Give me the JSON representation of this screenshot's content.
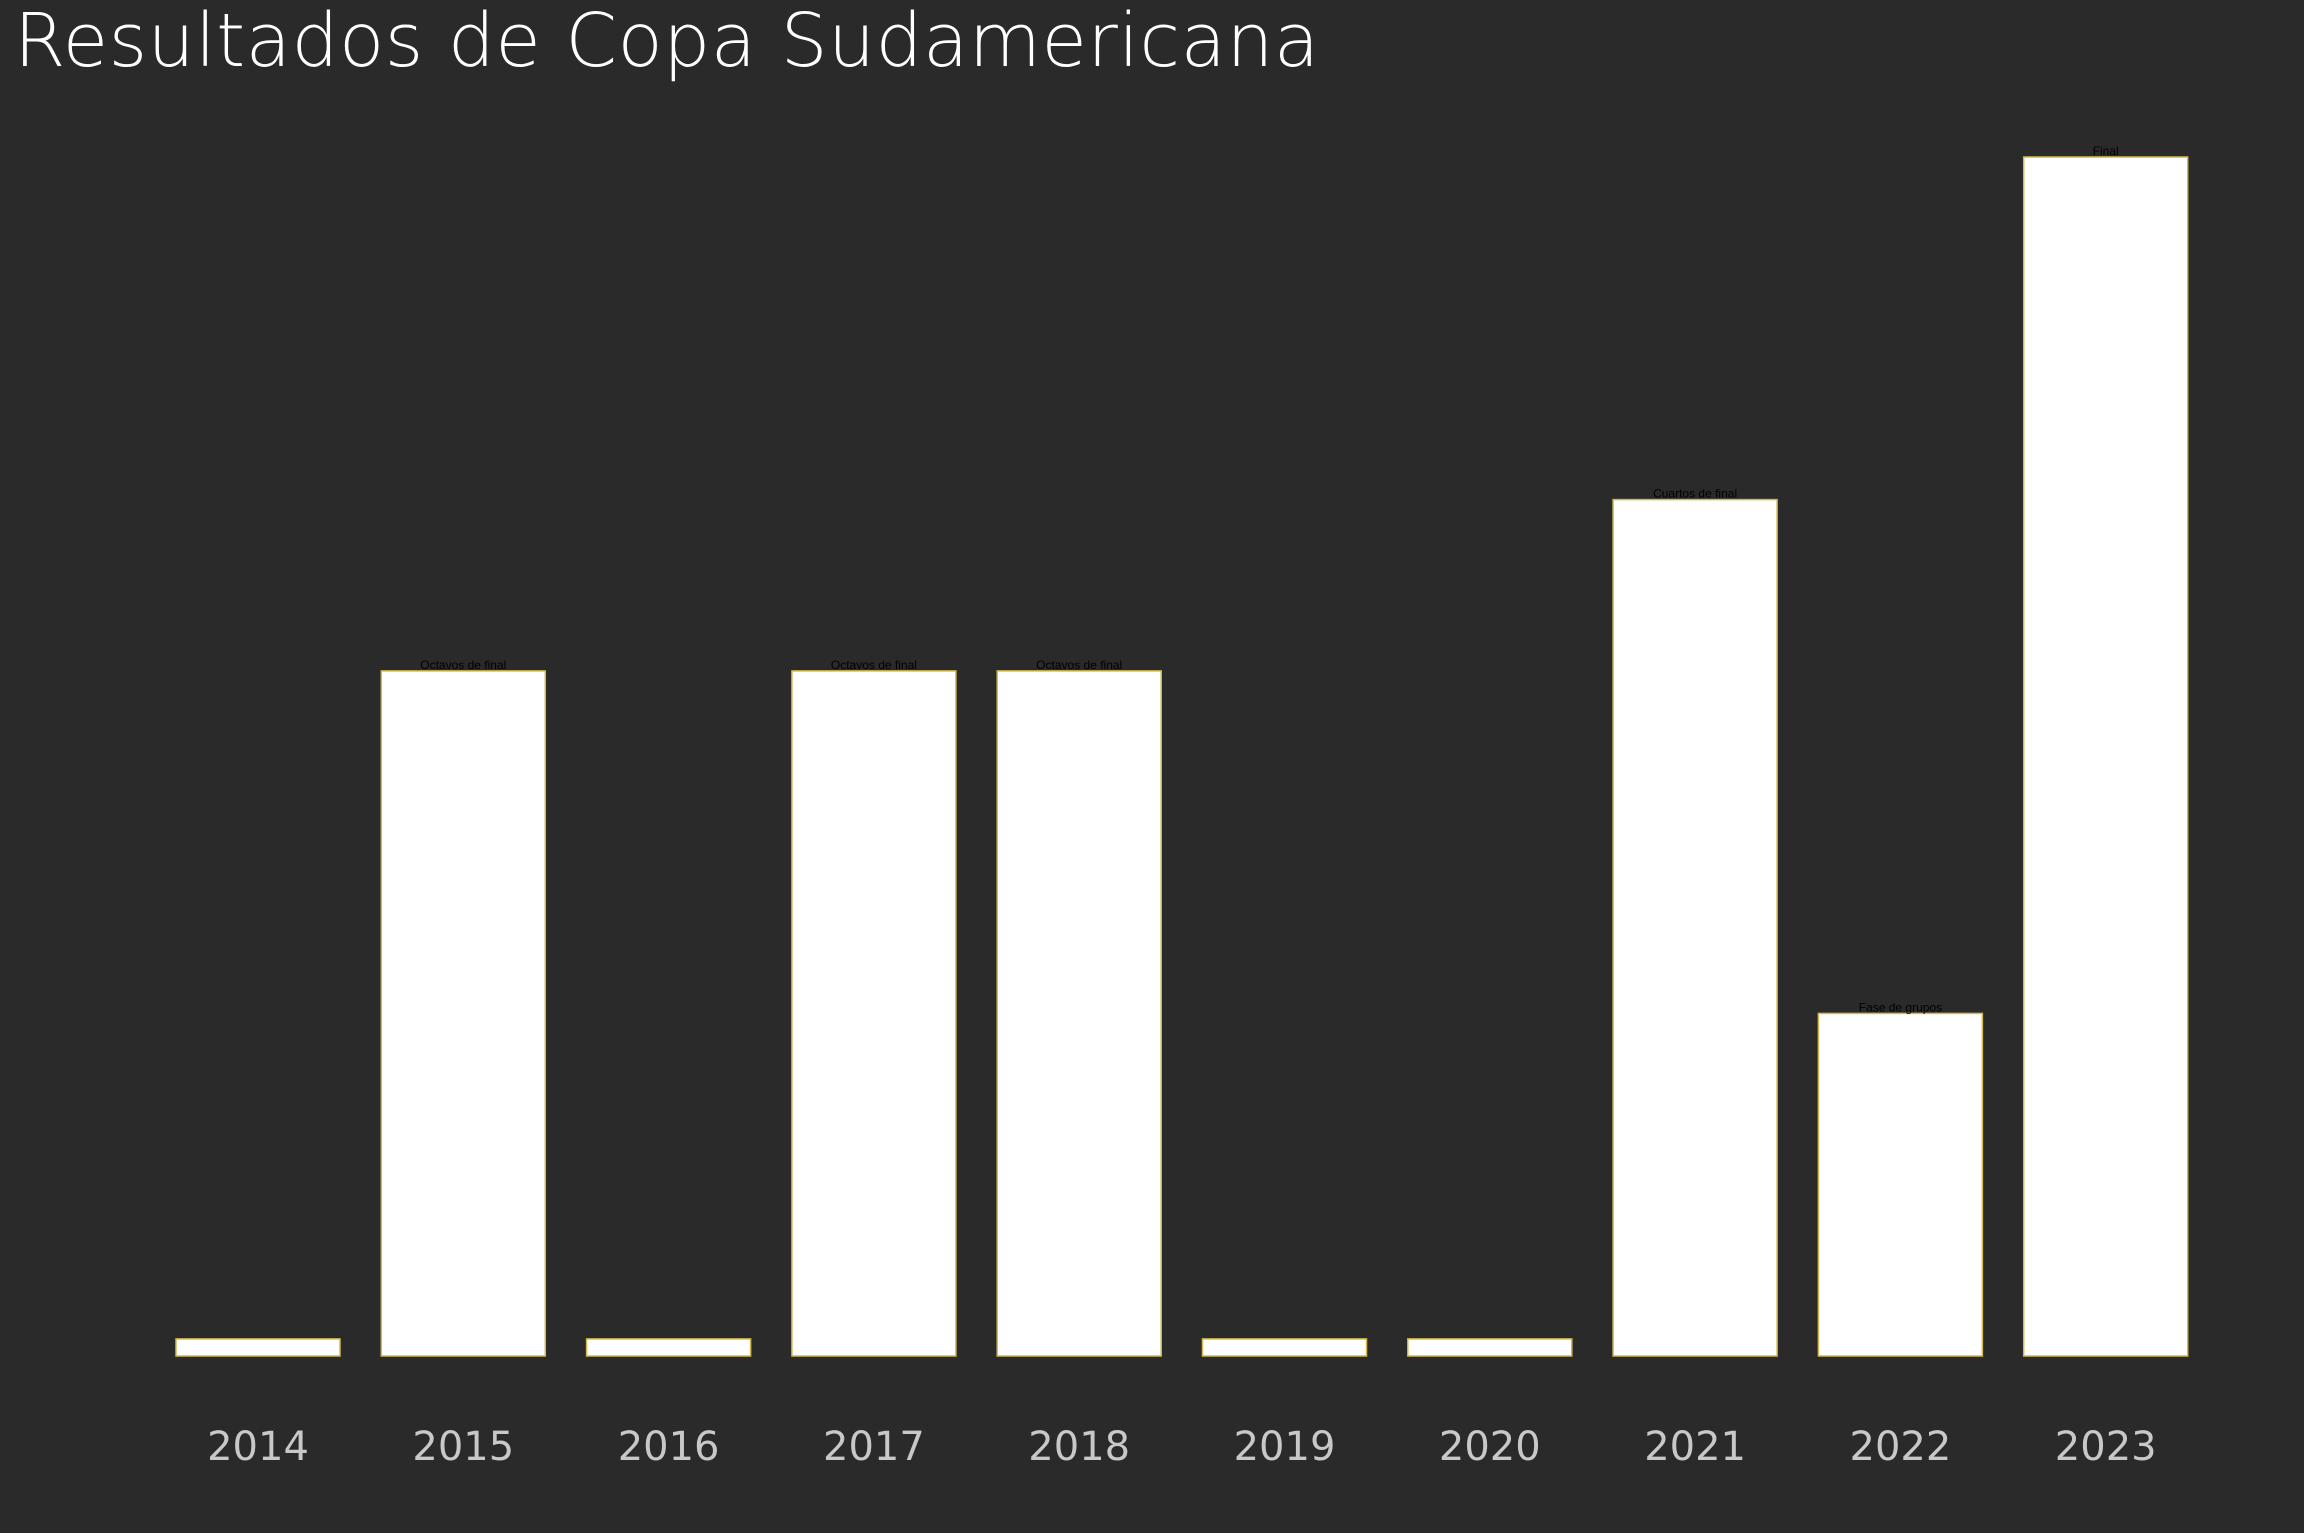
{
  "chart_data": {
    "type": "bar",
    "title": "Resultados de Copa Sudamericana",
    "xlabel": "",
    "ylabel": "",
    "categories": [
      "2014",
      "2015",
      "2016",
      "2017",
      "2018",
      "2019",
      "2020",
      "2021",
      "2022",
      "2023"
    ],
    "values": [
      0.1,
      4,
      0.1,
      4,
      4,
      0.1,
      0.1,
      5,
      2,
      7
    ],
    "bar_labels": [
      "",
      "Octavos de final",
      "",
      "Octavos de final",
      "Octavos de final",
      "",
      "",
      "Cuartos de final",
      "Fase de grupos",
      "Final"
    ],
    "ylim": [
      0,
      7
    ],
    "grid": false,
    "y_axis_visible": false,
    "colors": {
      "background": "#2a2a2a",
      "bar_fill": "#ffffff",
      "bar_edge": "#d4b84a",
      "tick_text": "#c8c8c8",
      "title_text": "#ffffff",
      "label_text": "#000000"
    }
  }
}
